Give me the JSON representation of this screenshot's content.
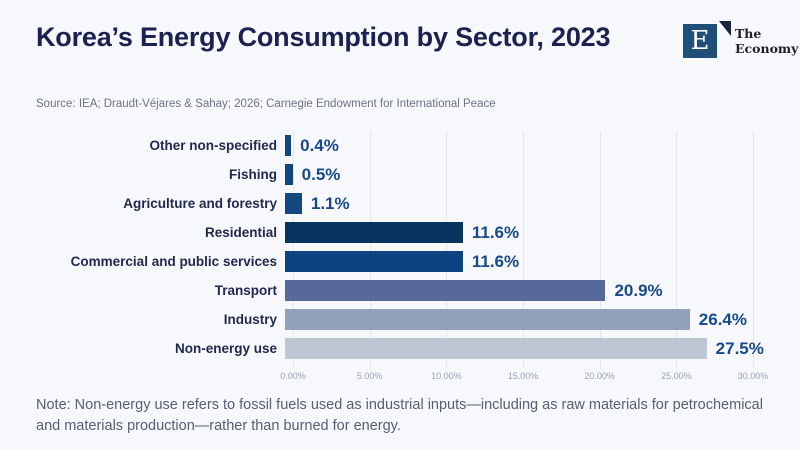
{
  "header": {
    "title": "Korea’s Energy Consumption by Sector, 2023",
    "source": "Source: IEA; Draudt-Véjares & Sahay; 2026; Carnegie Endowment for International Peace"
  },
  "logo": {
    "letter": "E",
    "name_line1": "The",
    "name_line2": "Economy",
    "square_color": "#1f4e79",
    "accent_color": "#1a2440"
  },
  "chart_data": {
    "type": "bar",
    "orientation": "horizontal",
    "title": "Korea’s Energy Consumption by Sector, 2023",
    "categories": [
      "Other non-specified",
      "Fishing",
      "Agriculture and forestry",
      "Residential",
      "Commercial and public services",
      "Transport",
      "Industry",
      "Non-energy use"
    ],
    "values": [
      0.4,
      0.5,
      1.1,
      11.6,
      11.6,
      20.9,
      26.4,
      27.5
    ],
    "value_labels": [
      "0.4%",
      "0.5%",
      "1.1%",
      "11.6%",
      "11.6%",
      "20.9%",
      "26.4%",
      "27.5%"
    ],
    "bar_colors": [
      "#0f4680",
      "#0f4680",
      "#11497f",
      "#07345f",
      "#0c4483",
      "#56699a",
      "#93a0bc",
      "#bec5d3"
    ],
    "x_ticks": [
      "0.00%",
      "5.00%",
      "10.00%",
      "15.00%",
      "20.00%",
      "25.00%",
      "30.00%"
    ],
    "xlim": [
      0,
      30
    ],
    "grid": true,
    "legend": "none",
    "value_label_color": "#17498c"
  },
  "note": "Note: Non-energy use refers to fossil fuels used as industrial inputs—including as raw materials for petrochemical and materials production—rather than burned for energy."
}
